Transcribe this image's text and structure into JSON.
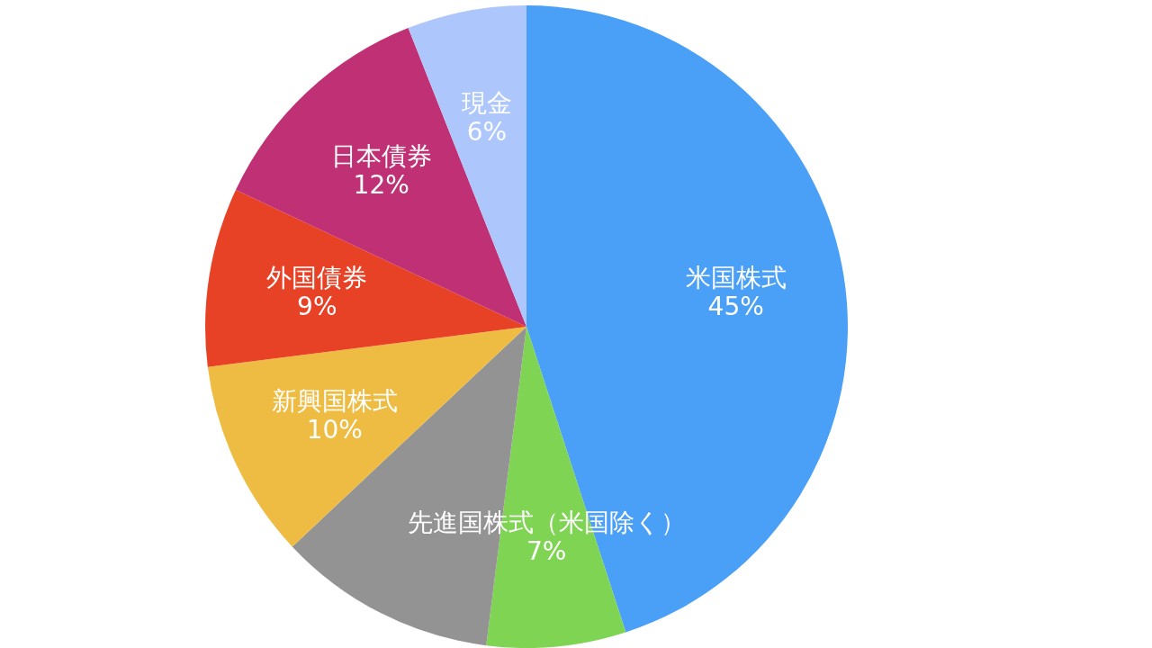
{
  "chart_data": {
    "type": "pie",
    "categories": [
      "米国株式",
      "先進国株式（米国除く）",
      null,
      "新興国株式",
      "外国債券",
      "日本債券",
      "現金"
    ],
    "values": [
      45,
      7,
      11,
      10,
      9,
      12,
      6
    ],
    "value_labels": [
      "45%",
      "7%",
      null,
      "10%",
      "9%",
      "12%",
      "6%"
    ],
    "colors": [
      "#4a9ff6",
      "#80d454",
      "#939393",
      "#eebc42",
      "#e84226",
      "#c03074",
      "#adc6fb"
    ]
  }
}
